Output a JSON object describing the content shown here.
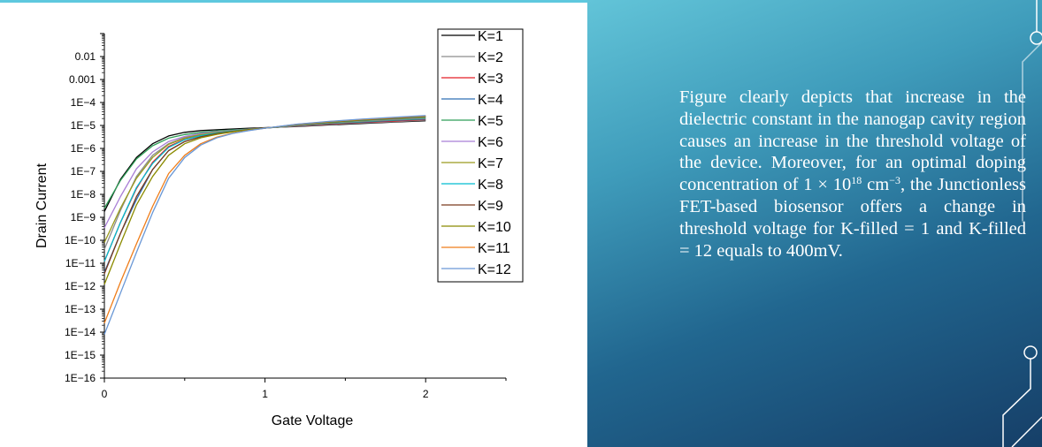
{
  "colors": {
    "accent": "#5ec8de",
    "text": "#ffffff"
  },
  "chart_data": {
    "type": "line",
    "title": "",
    "xlabel": "Gate Voltage",
    "ylabel": "Drain Current",
    "xlim": [
      0,
      2.5
    ],
    "ylim": [
      1e-16,
      0.1
    ],
    "yscale": "log",
    "xticks": [
      "0",
      "1",
      "2"
    ],
    "yticks": [
      "0.01",
      "0.001",
      "1E−4",
      "1E−5",
      "1E−6",
      "1E−7",
      "1E−8",
      "1E−9",
      "1E−10",
      "1E−11",
      "1E−12",
      "1E−13",
      "1E−14",
      "1E−15",
      "1E−16"
    ],
    "grid": false,
    "legend_position": "top-right",
    "x": [
      0,
      0.1,
      0.2,
      0.3,
      0.4,
      0.5,
      0.6,
      0.7,
      0.8,
      0.9,
      1.0,
      1.1,
      1.2,
      1.4,
      1.6,
      1.8,
      2.0
    ],
    "series": [
      {
        "name": "K=1",
        "color": "#000000",
        "values": [
          1.8e-09,
          4.5e-08,
          4e-07,
          1.6e-06,
          3.5e-06,
          5e-06,
          6e-06,
          6.5e-06,
          7e-06,
          7.5e-06,
          8e-06,
          8.5e-06,
          9e-06,
          1.05e-05,
          1.2e-05,
          1.4e-05,
          1.6e-05
        ]
      },
      {
        "name": "K=2",
        "color": "#8c8c8c",
        "values": [
          4e-11,
          2e-09,
          6e-08,
          5e-07,
          1.6e-06,
          3e-06,
          4.5e-06,
          5.5e-06,
          6.2e-06,
          7e-06,
          7.8e-06,
          8.5e-06,
          9.3e-06,
          1.1e-05,
          1.28e-05,
          1.45e-05,
          1.7e-05
        ]
      },
      {
        "name": "K=3",
        "color": "#e41e26",
        "values": [
          1.2e-11,
          6e-10,
          1.8e-08,
          2.5e-07,
          1.2e-06,
          2.5e-06,
          3.8e-06,
          5e-06,
          6e-06,
          6.9e-06,
          7.8e-06,
          8.6e-06,
          9.6e-06,
          1.15e-05,
          1.35e-05,
          1.55e-05,
          1.8e-05
        ]
      },
      {
        "name": "K=4",
        "color": "#2f6fb5",
        "values": [
          4e-12,
          2e-10,
          6e-09,
          1.2e-07,
          8e-07,
          2e-06,
          3.3e-06,
          4.5e-06,
          5.6e-06,
          6.7e-06,
          7.8e-06,
          8.7e-06,
          9.8e-06,
          1.2e-05,
          1.4e-05,
          1.65e-05,
          1.9e-05
        ]
      },
      {
        "name": "K=5",
        "color": "#2e9e57",
        "values": [
          2.5e-09,
          4e-08,
          3.5e-07,
          1.3e-06,
          2.8e-06,
          4e-06,
          5e-06,
          5.8e-06,
          6.4e-06,
          7e-06,
          7.7e-06,
          8.6e-06,
          1e-05,
          1.25e-05,
          1.48e-05,
          1.72e-05,
          2e-05
        ]
      },
      {
        "name": "K=6",
        "color": "#a97fd6",
        "values": [
          3.5e-10,
          8e-09,
          1.3e-07,
          7e-07,
          2e-06,
          3.3e-06,
          4.5e-06,
          5.4e-06,
          6.1e-06,
          6.9e-06,
          7.7e-06,
          8.7e-06,
          1.02e-05,
          1.3e-05,
          1.55e-05,
          1.8e-05,
          2.1e-05
        ]
      },
      {
        "name": "K=7",
        "color": "#9a9a1f",
        "values": [
          8e-11,
          2.5e-09,
          5e-08,
          4e-07,
          1.5e-06,
          2.8e-06,
          4e-06,
          5e-06,
          5.9e-06,
          6.8e-06,
          7.7e-06,
          8.8e-06,
          1.04e-05,
          1.33e-05,
          1.6e-05,
          1.88e-05,
          2.2e-05
        ]
      },
      {
        "name": "K=8",
        "color": "#00bcd0",
        "values": [
          1.2e-11,
          6e-10,
          2e-08,
          2.2e-07,
          1.1e-06,
          2.4e-06,
          3.6e-06,
          4.7e-06,
          5.7e-06,
          6.7e-06,
          7.7e-06,
          8.9e-06,
          1.06e-05,
          1.36e-05,
          1.65e-05,
          1.95e-05,
          2.3e-05
        ]
      },
      {
        "name": "K=9",
        "color": "#7a3a1e",
        "values": [
          3.5e-12,
          2e-10,
          8e-09,
          1.2e-07,
          8e-07,
          2e-06,
          3.2e-06,
          4.4e-06,
          5.5e-06,
          6.6e-06,
          7.7e-06,
          9e-06,
          1.08e-05,
          1.4e-05,
          1.7e-05,
          2.02e-05,
          2.4e-05
        ]
      },
      {
        "name": "K=10",
        "color": "#8b8b00",
        "values": [
          1.2e-12,
          7e-11,
          3.5e-09,
          6e-08,
          5e-07,
          1.6e-06,
          2.9e-06,
          4.1e-06,
          5.3e-06,
          6.5e-06,
          7.7e-06,
          9.1e-06,
          1.1e-05,
          1.43e-05,
          1.75e-05,
          2.1e-05,
          2.5e-05
        ]
      },
      {
        "name": "K=11",
        "color": "#ef7d1a",
        "values": [
          2.5e-14,
          1.5e-12,
          7e-11,
          3e-09,
          8e-08,
          5e-07,
          1.6e-06,
          3.1e-06,
          4.6e-06,
          6.1e-06,
          7.6e-06,
          9.2e-06,
          1.12e-05,
          1.47e-05,
          1.82e-05,
          2.18e-05,
          2.6e-05
        ]
      },
      {
        "name": "K=12",
        "color": "#6a98d6",
        "values": [
          8e-15,
          5e-13,
          3e-11,
          1.6e-09,
          5e-08,
          4e-07,
          1.4e-06,
          2.9e-06,
          4.5e-06,
          6e-06,
          7.6e-06,
          9.3e-06,
          1.14e-05,
          1.5e-05,
          1.88e-05,
          2.25e-05,
          2.7e-05
        ]
      }
    ]
  },
  "description": {
    "p1": "Figure clearly depicts that increase in the dielectric constant in the nanogap cavity region causes an increase in the threshold voltage of the device. Moreover, for an optimal doping concentration of 1 × 10",
    "exp1": "18",
    "p2": " cm",
    "exp2": "−3",
    "p3": ", the Junctionless FET-based biosensor offers a change in threshold voltage for K-filled = 1 and K-filled = 12 equals to 400mV."
  }
}
